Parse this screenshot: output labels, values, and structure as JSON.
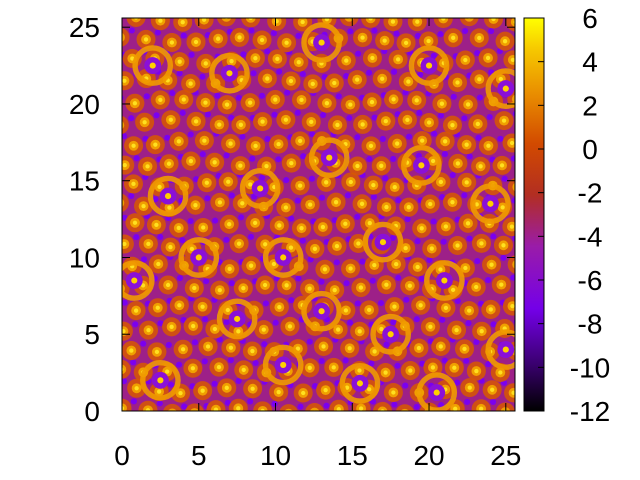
{
  "chart_data": {
    "type": "heatmap",
    "title": "",
    "xlabel": "",
    "ylabel": "",
    "xlim": [
      0,
      25.6
    ],
    "ylim": [
      0,
      25.6
    ],
    "x_ticks": [
      0,
      5,
      10,
      15,
      20,
      25
    ],
    "y_ticks": [
      0,
      5,
      10,
      15,
      20,
      25
    ],
    "colorbar": {
      "range": [
        -12,
        6
      ],
      "ticks": [
        6,
        4,
        2,
        0,
        -2,
        -4,
        -6,
        -8,
        -10,
        -12
      ],
      "palette": "gnuplot (black → purple → red → orange → yellow)"
    },
    "description_of_field": "hexagonal/quasicrystalline pattern of bright maxima (~2 to 6) on a violet background (~-8), with ring-shaped superstructures",
    "grid": false,
    "legend": "colorbar-right"
  }
}
